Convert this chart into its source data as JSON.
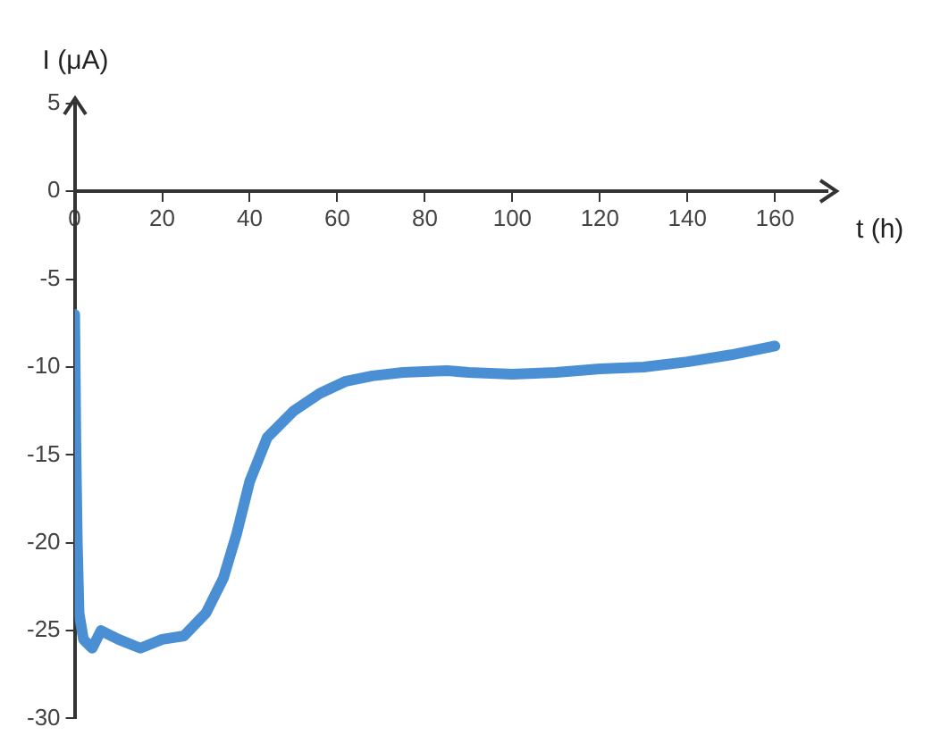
{
  "chart_data": {
    "type": "line",
    "xlabel": "t (h)",
    "ylabel": "I (μA)",
    "xlim": [
      0,
      172
    ],
    "ylim": [
      -30,
      5
    ],
    "xticks": [
      0,
      20,
      40,
      60,
      80,
      100,
      120,
      140,
      160
    ],
    "yticks": [
      -30,
      -25,
      -20,
      -15,
      -10,
      -5,
      0,
      5
    ],
    "grid": false,
    "legend": false,
    "marker": "none",
    "line_style": "solid",
    "series": [
      {
        "color": "#4a8fd4",
        "x": [
          0,
          0.3,
          0.6,
          1,
          2,
          4,
          6,
          10,
          15,
          20,
          25,
          30,
          34,
          37,
          40,
          44,
          50,
          56,
          62,
          68,
          75,
          85,
          90,
          100,
          110,
          120,
          130,
          140,
          150,
          160
        ],
        "values": [
          -7,
          -15,
          -20,
          -24,
          -25.5,
          -26,
          -25,
          -25.5,
          -26,
          -25.5,
          -25.3,
          -24,
          -22,
          -19.5,
          -16.5,
          -14,
          -12.5,
          -11.5,
          -10.8,
          -10.5,
          -10.3,
          -10.2,
          -10.3,
          -10.4,
          -10.3,
          -10.1,
          -10,
          -9.7,
          -9.3,
          -8.8
        ]
      }
    ]
  }
}
